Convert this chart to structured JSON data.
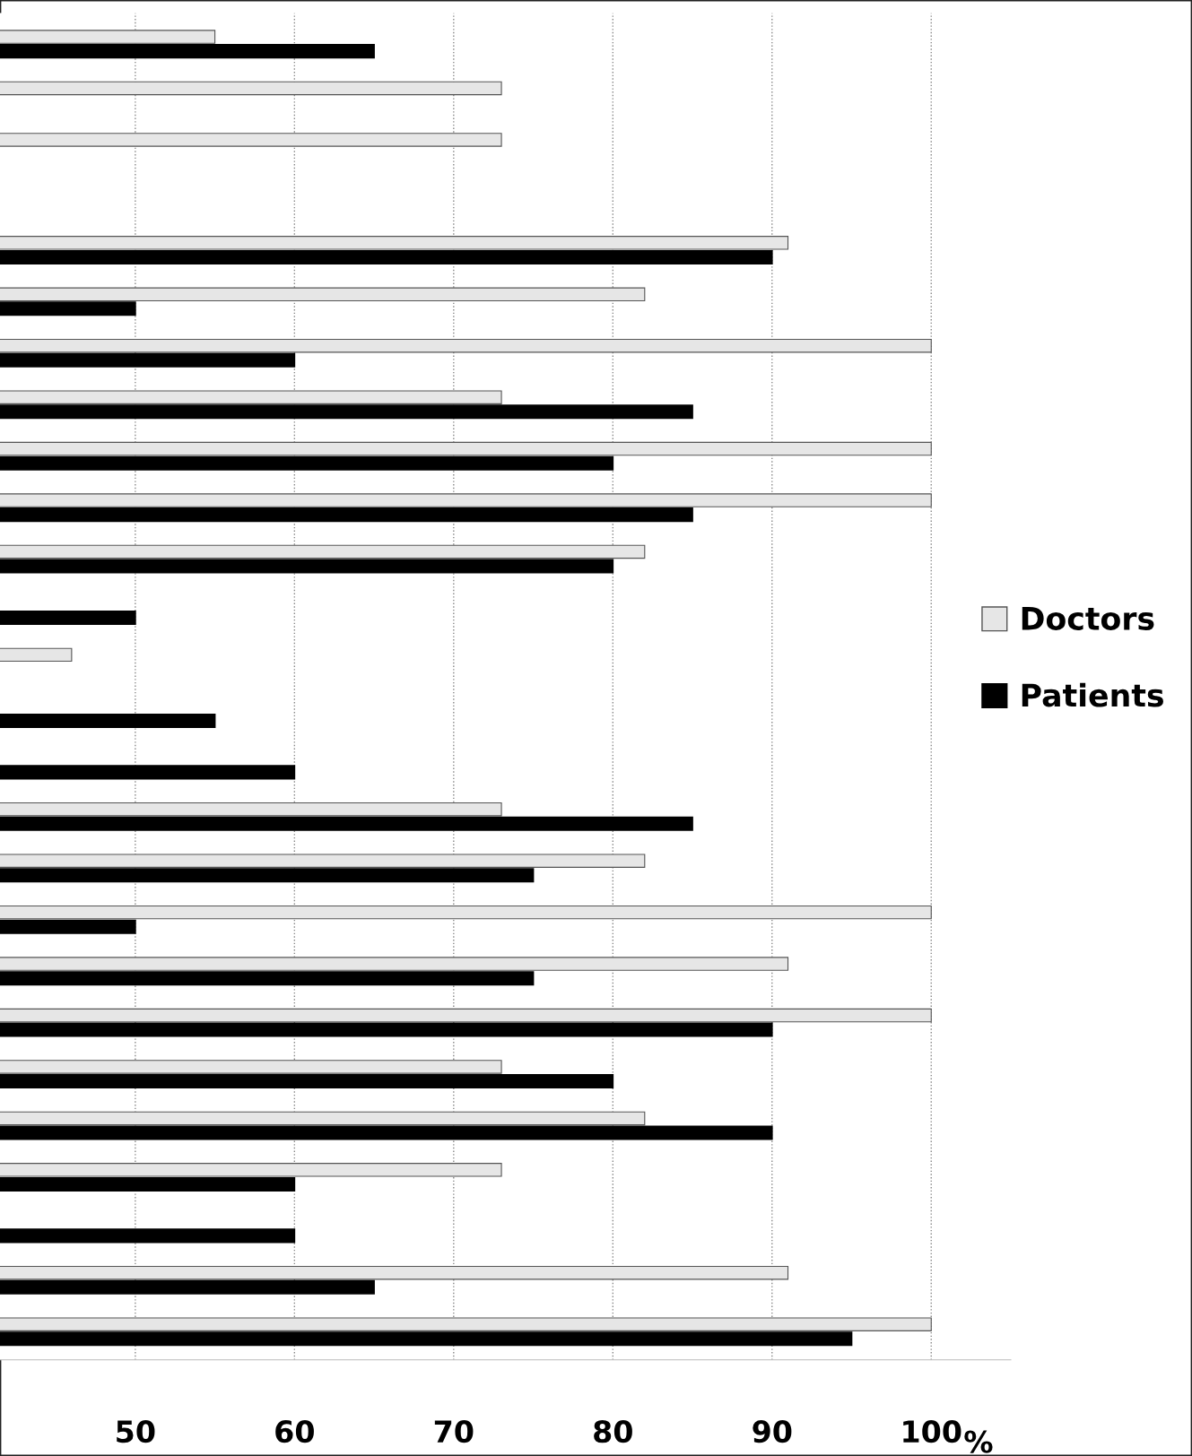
{
  "chart_data": {
    "type": "bar",
    "orientation": "horizontal",
    "xlabel": "%",
    "categories": [
      null,
      null,
      null,
      null,
      null,
      null,
      null,
      null,
      null,
      null,
      null,
      null,
      null,
      null,
      null,
      null,
      null,
      null,
      null,
      null,
      null,
      null,
      null,
      null,
      null,
      null
    ],
    "series": [
      {
        "name": "Doctors",
        "color": "#e6e6e6",
        "values": [
          55,
          73,
          73,
          null,
          91,
          82,
          100,
          73,
          100,
          100,
          82,
          null,
          46,
          null,
          null,
          73,
          82,
          100,
          91,
          100,
          73,
          82,
          73,
          null,
          91,
          100
        ]
      },
      {
        "name": "Patients",
        "color": "#000000",
        "values": [
          65,
          null,
          null,
          null,
          90,
          50,
          60,
          85,
          80,
          85,
          80,
          50,
          null,
          55,
          60,
          85,
          75,
          50,
          75,
          90,
          80,
          90,
          60,
          60,
          65,
          95
        ]
      }
    ],
    "xlim": [
      41.5,
      105
    ],
    "xticks": [
      50,
      60,
      70,
      80,
      90,
      100
    ],
    "grid": "x",
    "legend": "right",
    "tick_labels": "x"
  }
}
